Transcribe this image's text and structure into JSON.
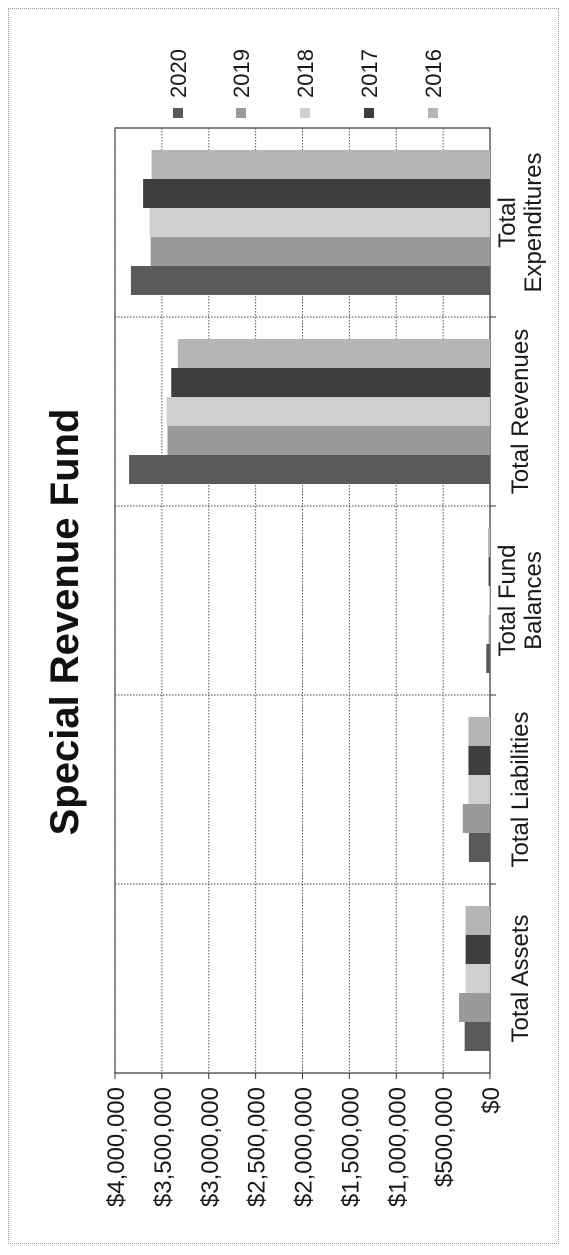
{
  "chart_data": {
    "type": "bar",
    "orientation": "vertical",
    "title": "Special Revenue Fund",
    "categories": [
      "Total Assets",
      "Total Liabilities",
      "Total Fund Balances",
      "Total Revenues",
      "Total Expenditures"
    ],
    "series": [
      {
        "name": "2020",
        "color": "#5a5a5a",
        "values": [
          270000,
          225000,
          40000,
          3850000,
          3830000
        ]
      },
      {
        "name": "2019",
        "color": "#9a9a9a",
        "values": [
          330000,
          290000,
          15000,
          3440000,
          3620000
        ]
      },
      {
        "name": "2018",
        "color": "#cfcfcf",
        "values": [
          260000,
          230000,
          10000,
          3450000,
          3630000
        ]
      },
      {
        "name": "2017",
        "color": "#3e3e3e",
        "values": [
          260000,
          230000,
          15000,
          3400000,
          3700000
        ]
      },
      {
        "name": "2016",
        "color": "#b5b5b5",
        "values": [
          260000,
          230000,
          20000,
          3330000,
          3610000
        ]
      }
    ],
    "yaxis": {
      "min": 0,
      "max": 4000000,
      "ticks": [
        {
          "value": 4000000,
          "label": "$4,000,000"
        },
        {
          "value": 3500000,
          "label": "$3,500,000"
        },
        {
          "value": 3000000,
          "label": "$3,000,000"
        },
        {
          "value": 2500000,
          "label": "$2,500,000"
        },
        {
          "value": 2000000,
          "label": "$2,000,000"
        },
        {
          "value": 1500000,
          "label": "$1,500,000"
        },
        {
          "value": 1000000,
          "label": "$1,000,000"
        },
        {
          "value": 500000,
          "label": "$500,000"
        },
        {
          "value": 0,
          "label": "$0"
        }
      ]
    },
    "xlabel": "",
    "ylabel": "",
    "legend_position": "right",
    "grid": true,
    "rotated_page": true
  }
}
